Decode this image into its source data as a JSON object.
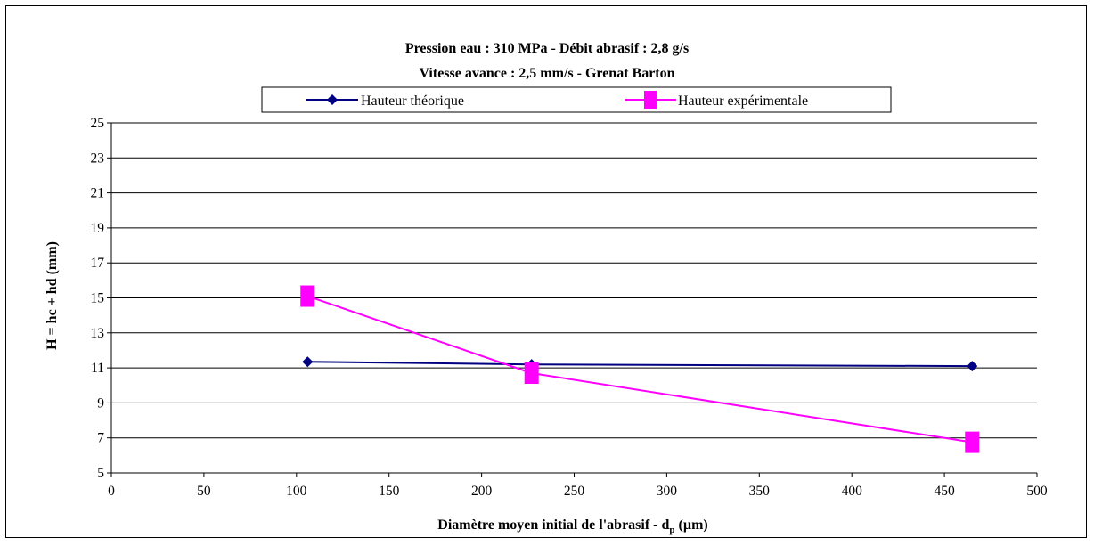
{
  "chart_data": {
    "type": "line",
    "title": [
      "Pression eau : 310 MPa - Débit abrasif : 2,8 g/s",
      "Vitesse avance : 2,5 mm/s - Grenat Barton"
    ],
    "xlabel_main": "Diamètre moyen initial de l'abrasif - d",
    "xlabel_sub": "p",
    "xlabel_unit": " (µm)",
    "ylabel": "H = hc + hd (mm)",
    "xlim": [
      0,
      500
    ],
    "ylim": [
      5,
      25
    ],
    "xticks": [
      0,
      50,
      100,
      150,
      200,
      250,
      300,
      350,
      400,
      450,
      500
    ],
    "yticks": [
      5,
      7,
      9,
      11,
      13,
      15,
      17,
      19,
      21,
      23,
      25
    ],
    "grid": "horizontal",
    "legend_position": "top",
    "series": [
      {
        "name": "Hauteur théorique",
        "color": "#000080",
        "marker": "diamond",
        "points": [
          [
            106,
            11.35
          ],
          [
            227,
            11.2
          ],
          [
            465,
            11.1
          ]
        ]
      },
      {
        "name": "Hauteur expérimentale",
        "color": "#ff00ff",
        "marker": "square",
        "points": [
          [
            106,
            15.1
          ],
          [
            227,
            10.7
          ],
          [
            465,
            6.75
          ]
        ]
      }
    ]
  }
}
